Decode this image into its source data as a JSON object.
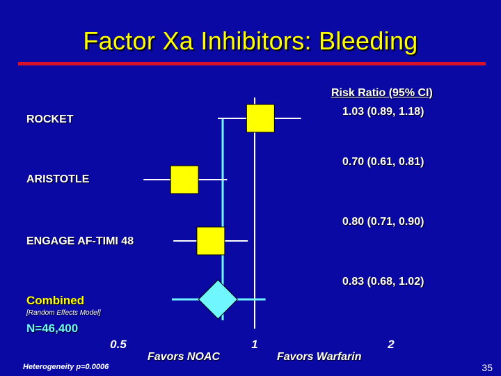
{
  "slide": {
    "title": "Factor Xa Inhibitors: Bleeding",
    "slide_number": "35",
    "ci_header": "Risk Ratio (95% CI)",
    "favors_left": "Favors NOAC",
    "favors_right": "Favors Warfarin",
    "n_text": "N=46,400",
    "random_effects_note": "[Random Effects Model]",
    "heterogeneity": "Heterogeneity p=0.0006"
  },
  "colors": {
    "background": "#0a09a4",
    "title": "#ffff00",
    "rule": "#d8122a",
    "marker": "#ffff00",
    "combined_marker": "#6ff6ff",
    "reference_line": "#6ff6ff"
  },
  "chart_data": {
    "type": "forest",
    "x_scale": "log",
    "xlim": [
      0.5,
      2
    ],
    "x_ticks": [
      "0.5",
      "1",
      "2"
    ],
    "reference_value": 1,
    "studies": [
      {
        "name": "ROCKET",
        "rr": 1.03,
        "lo": 0.89,
        "hi": 1.18,
        "ci_text": "1.03 (0.89, 1.18)"
      },
      {
        "name": "ARISTOTLE",
        "rr": 0.7,
        "lo": 0.61,
        "hi": 0.81,
        "ci_text": "0.70 (0.61, 0.81)"
      },
      {
        "name": "ENGAGE AF-TIMI 48",
        "rr": 0.8,
        "lo": 0.71,
        "hi": 0.9,
        "ci_text": "0.80 (0.71, 0.90)"
      }
    ],
    "combined": {
      "name": "Combined",
      "rr": 0.83,
      "lo": 0.68,
      "hi": 1.02,
      "ci_text": "0.83 (0.68, 1.02)"
    }
  }
}
